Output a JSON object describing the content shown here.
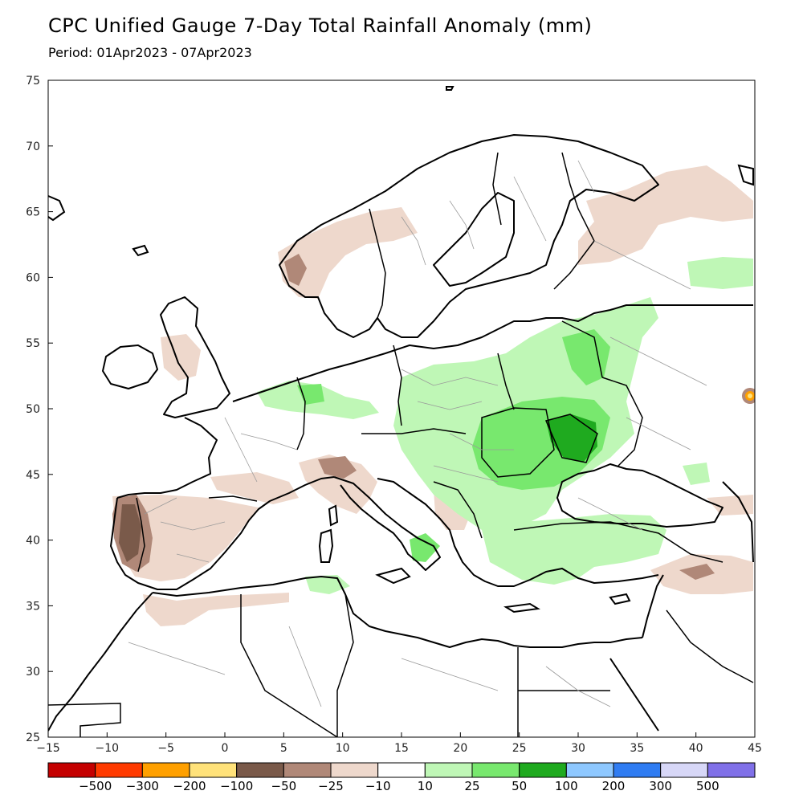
{
  "header": {
    "title": "CPC Unified Gauge 7-Day Total Rainfall Anomaly (mm)",
    "period": "Period: 01Apr2023 - 07Apr2023"
  },
  "map": {
    "lon_ticks": [
      "-15",
      "-10",
      "-5",
      "0",
      "5",
      "10",
      "15",
      "20",
      "25",
      "30",
      "35",
      "40",
      "45"
    ],
    "lat_ticks": [
      "25",
      "30",
      "35",
      "40",
      "45",
      "50",
      "55",
      "60",
      "65",
      "70",
      "75"
    ],
    "lon_range": [
      -15,
      45
    ],
    "lat_range": [
      25,
      75
    ],
    "colors": {
      "land": "#ffffff",
      "coast": "#000000",
      "border": "#000000",
      "admin": "#9a9a9a",
      "dry_light": "#eed8cc",
      "dry_mid": "#b08878",
      "dry_dark": "#7a5a4a",
      "wet_light": "#bff7b6",
      "wet_mid": "#78e86e",
      "wet_dark": "#1faa1f"
    }
  },
  "colorbar": {
    "colors": [
      "#c40000",
      "#ff3a00",
      "#ffa000",
      "#ffe27a",
      "#7a5a4a",
      "#b08878",
      "#eed8cc",
      "#ffffff",
      "#bff7b6",
      "#78e86e",
      "#1faa1f",
      "#8ec8ff",
      "#2f7cf2",
      "#d7d7f7",
      "#8070e8"
    ],
    "labels": [
      "-500",
      "-300",
      "-200",
      "-100",
      "-50",
      "-25",
      "-10",
      "10",
      "25",
      "50",
      "100",
      "200",
      "300",
      "500"
    ]
  }
}
